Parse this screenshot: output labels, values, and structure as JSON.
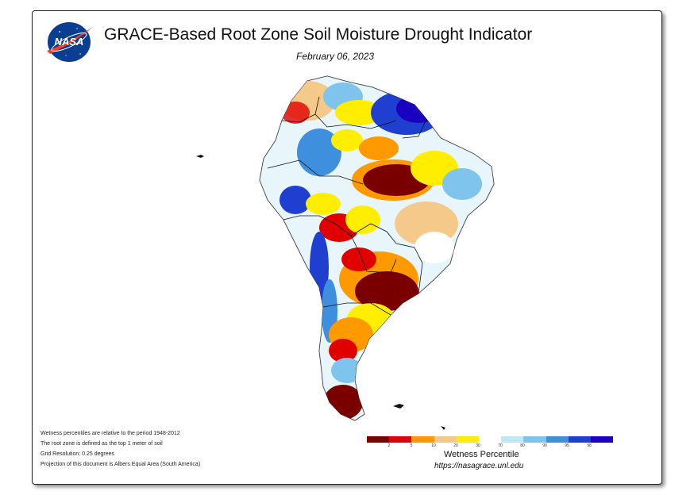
{
  "header": {
    "title": "GRACE-Based Root Zone Soil Moisture Drought Indicator",
    "date": "February 06, 2023",
    "logo_text": "NASA"
  },
  "notes": [
    "Wetness percentiles are relative to the period 1948-2012",
    "The root zone is defined as the top 1 meter of soil",
    "Grid Resolution: 0.25 degrees",
    "Projection of this document is Albers Equal Area (South America)"
  ],
  "legend": {
    "title": "Wetness Percentile",
    "url": "https://nasagrace.unl.edu",
    "classes": [
      {
        "color": "#7a0000"
      },
      {
        "color": "#e00000"
      },
      {
        "color": "#ff9900"
      },
      {
        "color": "#f5c98a"
      },
      {
        "color": "#ffee00"
      },
      {
        "color": "#ffffff"
      },
      {
        "color": "#bfe8f7"
      },
      {
        "color": "#7fc4ec"
      },
      {
        "color": "#3f8fdf"
      },
      {
        "color": "#1e3fd0"
      },
      {
        "color": "#1a00c0"
      }
    ],
    "ticks": [
      "2",
      "5",
      "10",
      "20",
      "30",
      "70",
      "80",
      "90",
      "95",
      "98"
    ]
  },
  "map": {
    "region": "South America"
  }
}
